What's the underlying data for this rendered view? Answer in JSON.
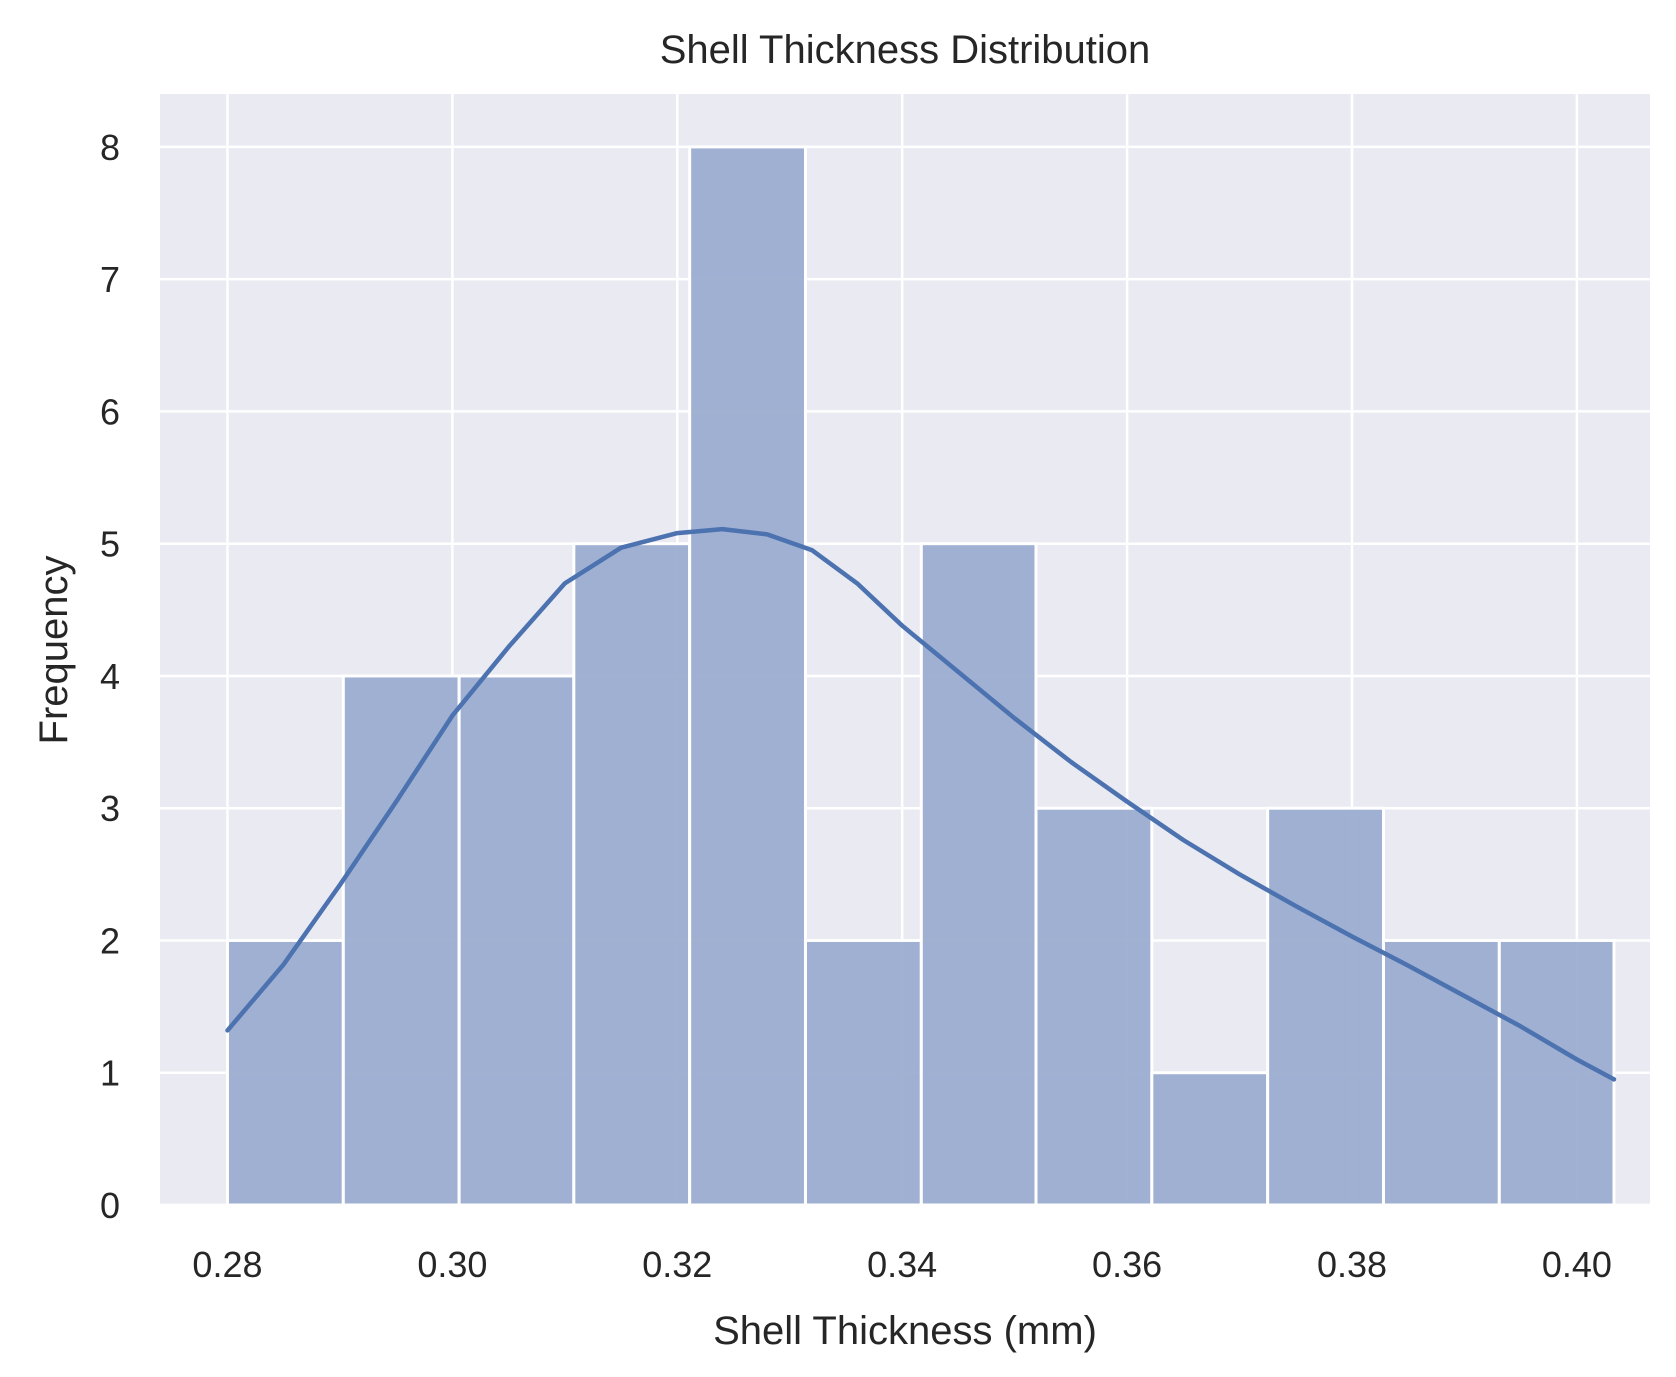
{
  "chart_data": {
    "type": "bar",
    "title": "Shell Thickness Distribution",
    "xlabel": "Shell Thickness (mm)",
    "ylabel": "Frequency",
    "xlim": [
      0.274,
      0.4065
    ],
    "ylim": [
      0,
      8.4
    ],
    "xticks": [
      0.28,
      0.3,
      0.32,
      0.34,
      0.36,
      0.38,
      0.4
    ],
    "xtick_labels": [
      "0.28",
      "0.30",
      "0.32",
      "0.34",
      "0.36",
      "0.38",
      "0.40"
    ],
    "yticks": [
      0,
      1,
      2,
      3,
      4,
      5,
      6,
      7,
      8
    ],
    "ytick_labels": [
      "0",
      "1",
      "2",
      "3",
      "4",
      "5",
      "6",
      "7",
      "8"
    ],
    "bin_edges": [
      0.28,
      0.2903,
      0.3006,
      0.3108,
      0.3211,
      0.3314,
      0.3417,
      0.3519,
      0.3622,
      0.3725,
      0.3828,
      0.3931,
      0.4033
    ],
    "counts": [
      2,
      4,
      4,
      5,
      8,
      2,
      5,
      3,
      1,
      3,
      2,
      2
    ],
    "kde": {
      "x": [
        0.28,
        0.285,
        0.29,
        0.295,
        0.3,
        0.305,
        0.31,
        0.315,
        0.32,
        0.324,
        0.328,
        0.332,
        0.336,
        0.34,
        0.345,
        0.35,
        0.355,
        0.36,
        0.365,
        0.37,
        0.375,
        0.38,
        0.385,
        0.39,
        0.395,
        0.4,
        0.4033
      ],
      "y": [
        1.32,
        1.82,
        2.42,
        3.05,
        3.7,
        4.22,
        4.7,
        4.97,
        5.08,
        5.11,
        5.07,
        4.95,
        4.7,
        4.38,
        4.03,
        3.68,
        3.35,
        3.05,
        2.76,
        2.5,
        2.26,
        2.03,
        1.81,
        1.58,
        1.35,
        1.1,
        0.95
      ]
    },
    "grid": true,
    "legend": "none",
    "colors": {
      "bar_fill": "#9badd0",
      "bar_edge": "#ffffff",
      "kde_line": "#4c72b0",
      "plot_background": "#eaeaf2",
      "grid": "#ffffff",
      "text": "#262626"
    }
  }
}
